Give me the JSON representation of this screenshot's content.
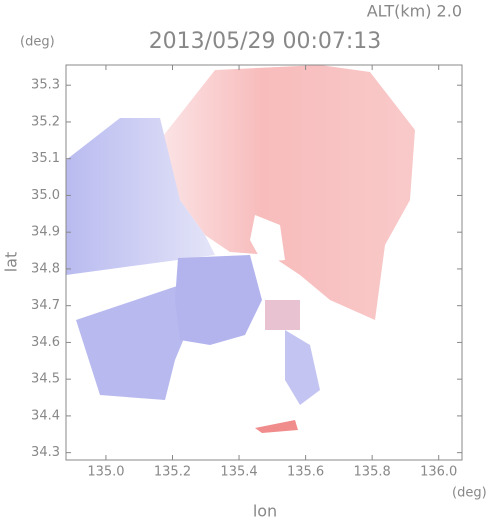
{
  "chart_data": {
    "type": "image",
    "title": "2013/05/29 00:07:13",
    "subtitle": "ALT(km) 2.0",
    "x_label": "lon",
    "y_label": "lat",
    "x_unit": "(deg)",
    "y_unit": "(deg)",
    "xlim": [
      134.88,
      136.07
    ],
    "ylim": [
      34.28,
      35.355
    ],
    "xticks": [
      {
        "value": 135.0,
        "label": "135.0"
      },
      135.2,
      135.4,
      135.6,
      135.8,
      {
        "value": 136.0,
        "label": "136.0"
      }
    ],
    "yticks": [
      34.3,
      34.4,
      34.5,
      34.6,
      34.7,
      34.8,
      34.9,
      {
        "value": 35.0,
        "label": "35.0"
      },
      35.1,
      35.2,
      35.3
    ]
  }
}
